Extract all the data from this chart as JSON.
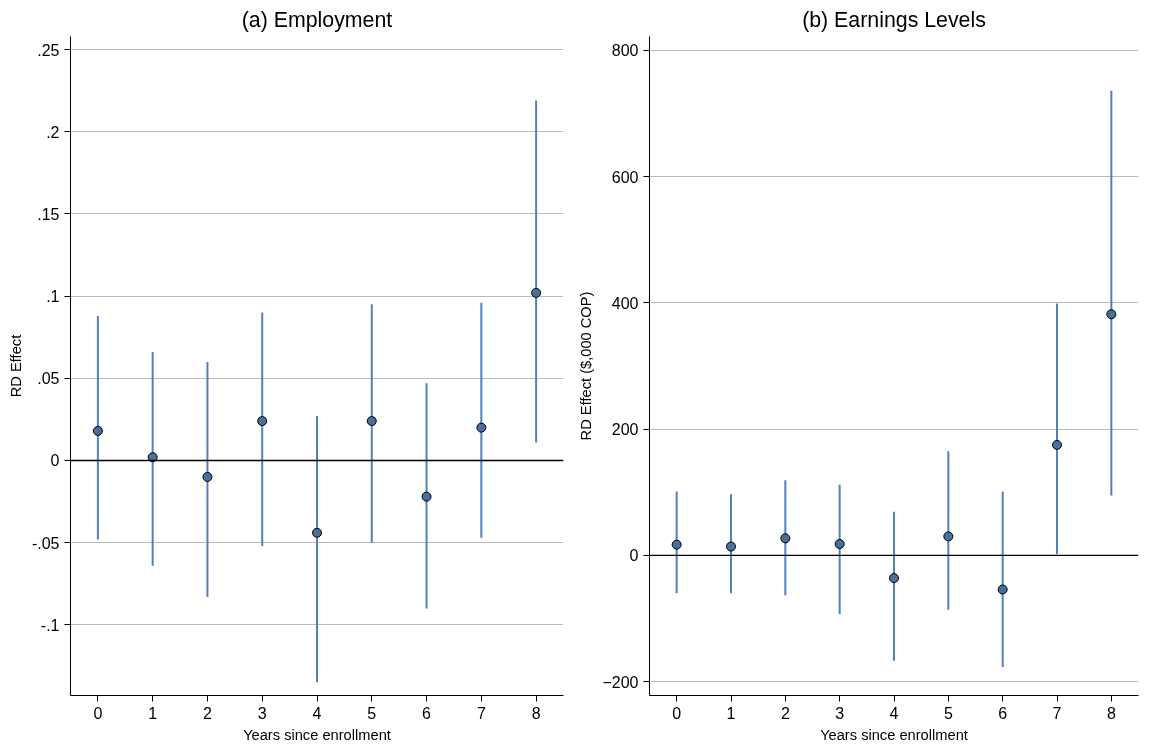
{
  "chart_data": [
    {
      "type": "scatter",
      "title": "(a) Employment",
      "xlabel": "Years since enrollment",
      "ylabel": "RD Effect",
      "x": [
        0,
        1,
        2,
        3,
        4,
        5,
        6,
        7,
        8
      ],
      "series": [
        {
          "color": "#4a6f9c",
          "values": [
            0.018,
            0.002,
            -0.01,
            0.024,
            -0.044,
            0.024,
            -0.022,
            0.02,
            0.102
          ],
          "errors": [
            [
              -0.048,
              0.088
            ],
            [
              -0.064,
              0.066
            ],
            [
              -0.083,
              0.06
            ],
            [
              -0.052,
              0.09
            ],
            [
              -0.135,
              0.027
            ],
            [
              -0.05,
              0.095
            ],
            [
              -0.09,
              0.047
            ],
            [
              -0.047,
              0.096
            ],
            [
              0.011,
              0.219
            ]
          ]
        }
      ],
      "xlim": [
        -0.5,
        8.5
      ],
      "xticks": [
        0,
        1,
        2,
        3,
        4,
        5,
        6,
        7,
        8
      ],
      "ylim": [
        -0.143,
        0.258
      ],
      "yticks": [
        {
          "value": -0.1,
          "label": "-.1"
        },
        {
          "value": -0.05,
          "label": "-.05"
        },
        0,
        {
          "value": 0.05,
          "label": ".05"
        },
        {
          "value": 0.1,
          "label": ".1"
        },
        {
          "value": 0.15,
          "label": ".15"
        },
        {
          "value": 0.2,
          "label": ".2"
        },
        {
          "value": 0.25,
          "label": ".25"
        }
      ],
      "ref_lines": [
        {
          "axis": "y",
          "value": 0,
          "color": "#000000"
        }
      ],
      "grid": "y",
      "marker": "circle"
    },
    {
      "type": "scatter",
      "title": "(b) Earnings Levels",
      "xlabel": "Years since enrollment",
      "ylabel": "RD Effect ($,000 COP)",
      "x": [
        0,
        1,
        2,
        3,
        4,
        5,
        6,
        7,
        8
      ],
      "series": [
        {
          "color": "#4a6f9c",
          "values": [
            17,
            14,
            27,
            18,
            -36,
            30,
            -54,
            175,
            382
          ],
          "errors": [
            [
              -60,
              101
            ],
            [
              -60,
              97
            ],
            [
              -63,
              119
            ],
            [
              -93,
              112
            ],
            [
              -167,
              69
            ],
            [
              -86,
              165
            ],
            [
              -177,
              101
            ],
            [
              2,
              399
            ],
            [
              95,
              736
            ]
          ]
        }
      ],
      "xlim": [
        -0.5,
        8.5
      ],
      "xticks": [
        0,
        1,
        2,
        3,
        4,
        5,
        6,
        7,
        8
      ],
      "ylim": [
        -222,
        822
      ],
      "yticks": [
        -200,
        0,
        200,
        400,
        600,
        800
      ],
      "ref_lines": [
        {
          "axis": "y",
          "value": 0,
          "color": "#000000"
        }
      ],
      "grid": "y",
      "marker": "circle"
    }
  ]
}
